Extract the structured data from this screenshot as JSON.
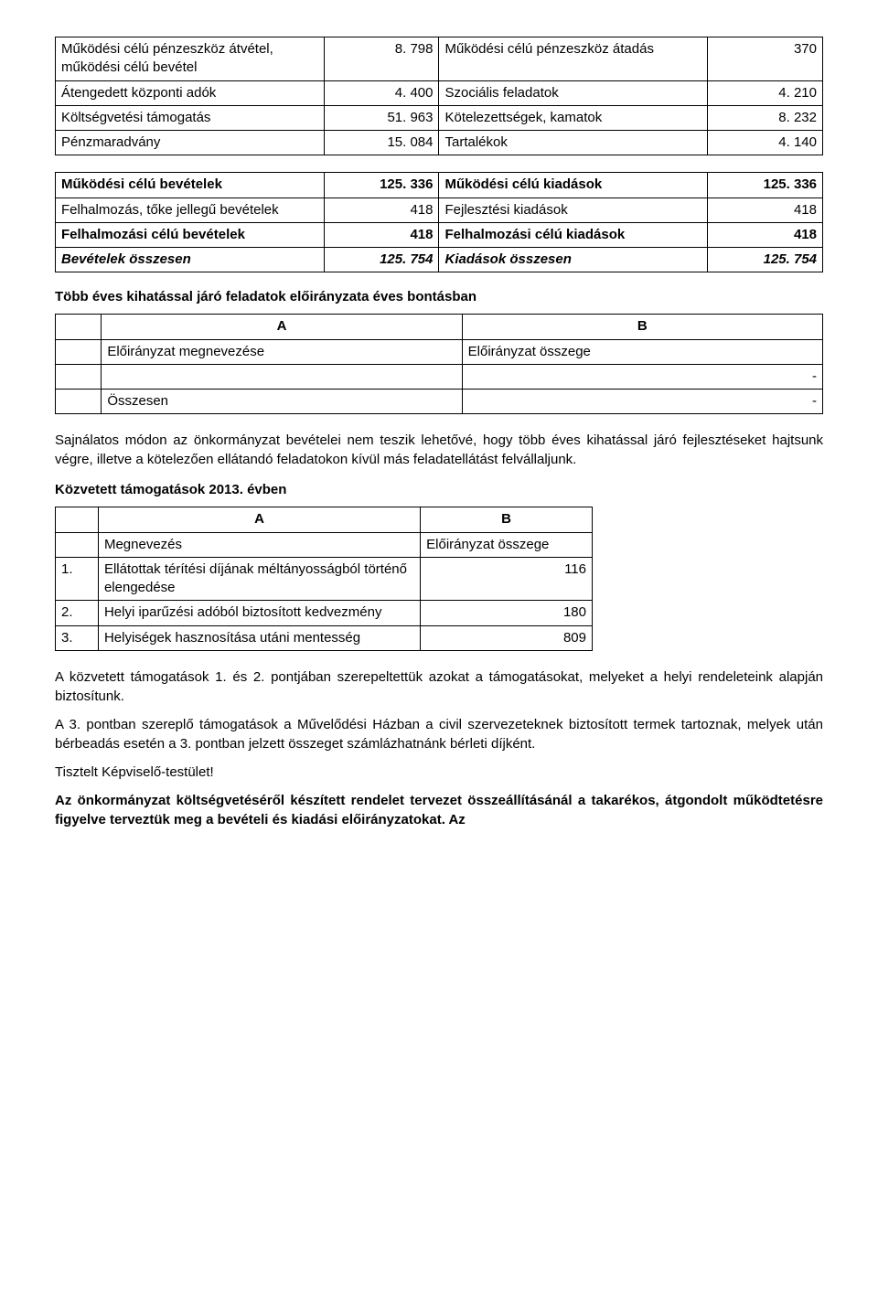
{
  "table1": {
    "rows": [
      {
        "l": "Működési célú pénzeszköz átvétel, működési célú bevétel",
        "lv": "8. 798",
        "r": "Működési célú pénzeszköz átadás",
        "rv": "370"
      },
      {
        "l": "Átengedett központi adók",
        "lv": "4. 400",
        "r": "Szociális feladatok",
        "rv": "4. 210"
      },
      {
        "l": "Költségvetési támogatás",
        "lv": "51. 963",
        "r": "Kötelezettségek, kamatok",
        "rv": "8. 232"
      },
      {
        "l": "Pénzmaradvány",
        "lv": "15. 084",
        "r": "Tartalékok",
        "rv": "4. 140"
      }
    ]
  },
  "table2": {
    "rows": [
      {
        "l": "Működési célú bevételek",
        "lv": "125. 336",
        "r": "Működési célú kiadások",
        "rv": "125. 336",
        "bold": true
      },
      {
        "l": "Felhalmozás, tőke jellegű bevételek",
        "lv": "418",
        "r": "Fejlesztési kiadások",
        "rv": "418"
      },
      {
        "l": "Felhalmozási célú bevételek",
        "lv": "418",
        "r": "Felhalmozási célú kiadások",
        "rv": "418",
        "bold": true
      },
      {
        "l": "Bevételek összesen",
        "lv": "125. 754",
        "r": "Kiadások összesen",
        "rv": "125. 754",
        "bolditalic": true
      }
    ]
  },
  "heading1": "Több éves kihatással járó feladatok előirányzata éves bontásban",
  "table3": {
    "hA": "A",
    "hB": "B",
    "r1a": "Előirányzat megnevezése",
    "r1b": "Előirányzat összege",
    "r2b": "-",
    "r3a": "Összesen",
    "r3b": "-"
  },
  "para1": "Sajnálatos módon az önkormányzat bevételei nem teszik lehetővé, hogy több éves kihatással járó fejlesztéseket hajtsunk végre, illetve a kötelezően ellátandó feladatokon kívül más feladatellátást felvállaljunk.",
  "heading2": "Közvetett támogatások 2013. évben",
  "table4": {
    "hA": "A",
    "hB": "B",
    "hName": "Megnevezés",
    "hVal": "Előirányzat összege",
    "rows": [
      {
        "n": "1.",
        "name": "Ellátottak térítési díjának méltányosságból történő elengedése",
        "v": "116"
      },
      {
        "n": "2.",
        "name": "Helyi iparűzési adóból biztosított kedvezmény",
        "v": "180"
      },
      {
        "n": "3.",
        "name": "Helyiségek hasznosítása utáni mentesség",
        "v": "809"
      }
    ]
  },
  "para2": "A közvetett támogatások 1. és 2. pontjában szerepeltettük azokat a támogatásokat, melyeket a helyi rendeleteink alapján biztosítunk.",
  "para3": "A 3. pontban szereplő támogatások a Művelődési Házban a civil szervezeteknek biztosított termek tartoznak, melyek után bérbeadás esetén a 3. pontban jelzett összeget számlázhatnánk bérleti díjként.",
  "closing": "Tisztelt Képviselő-testület!",
  "para4": "Az önkormányzat költségvetéséről készített rendelet tervezet összeállításánál a takarékos, átgondolt működtetésre figyelve terveztük meg a bevételi és kiadási előirányzatokat. Az"
}
